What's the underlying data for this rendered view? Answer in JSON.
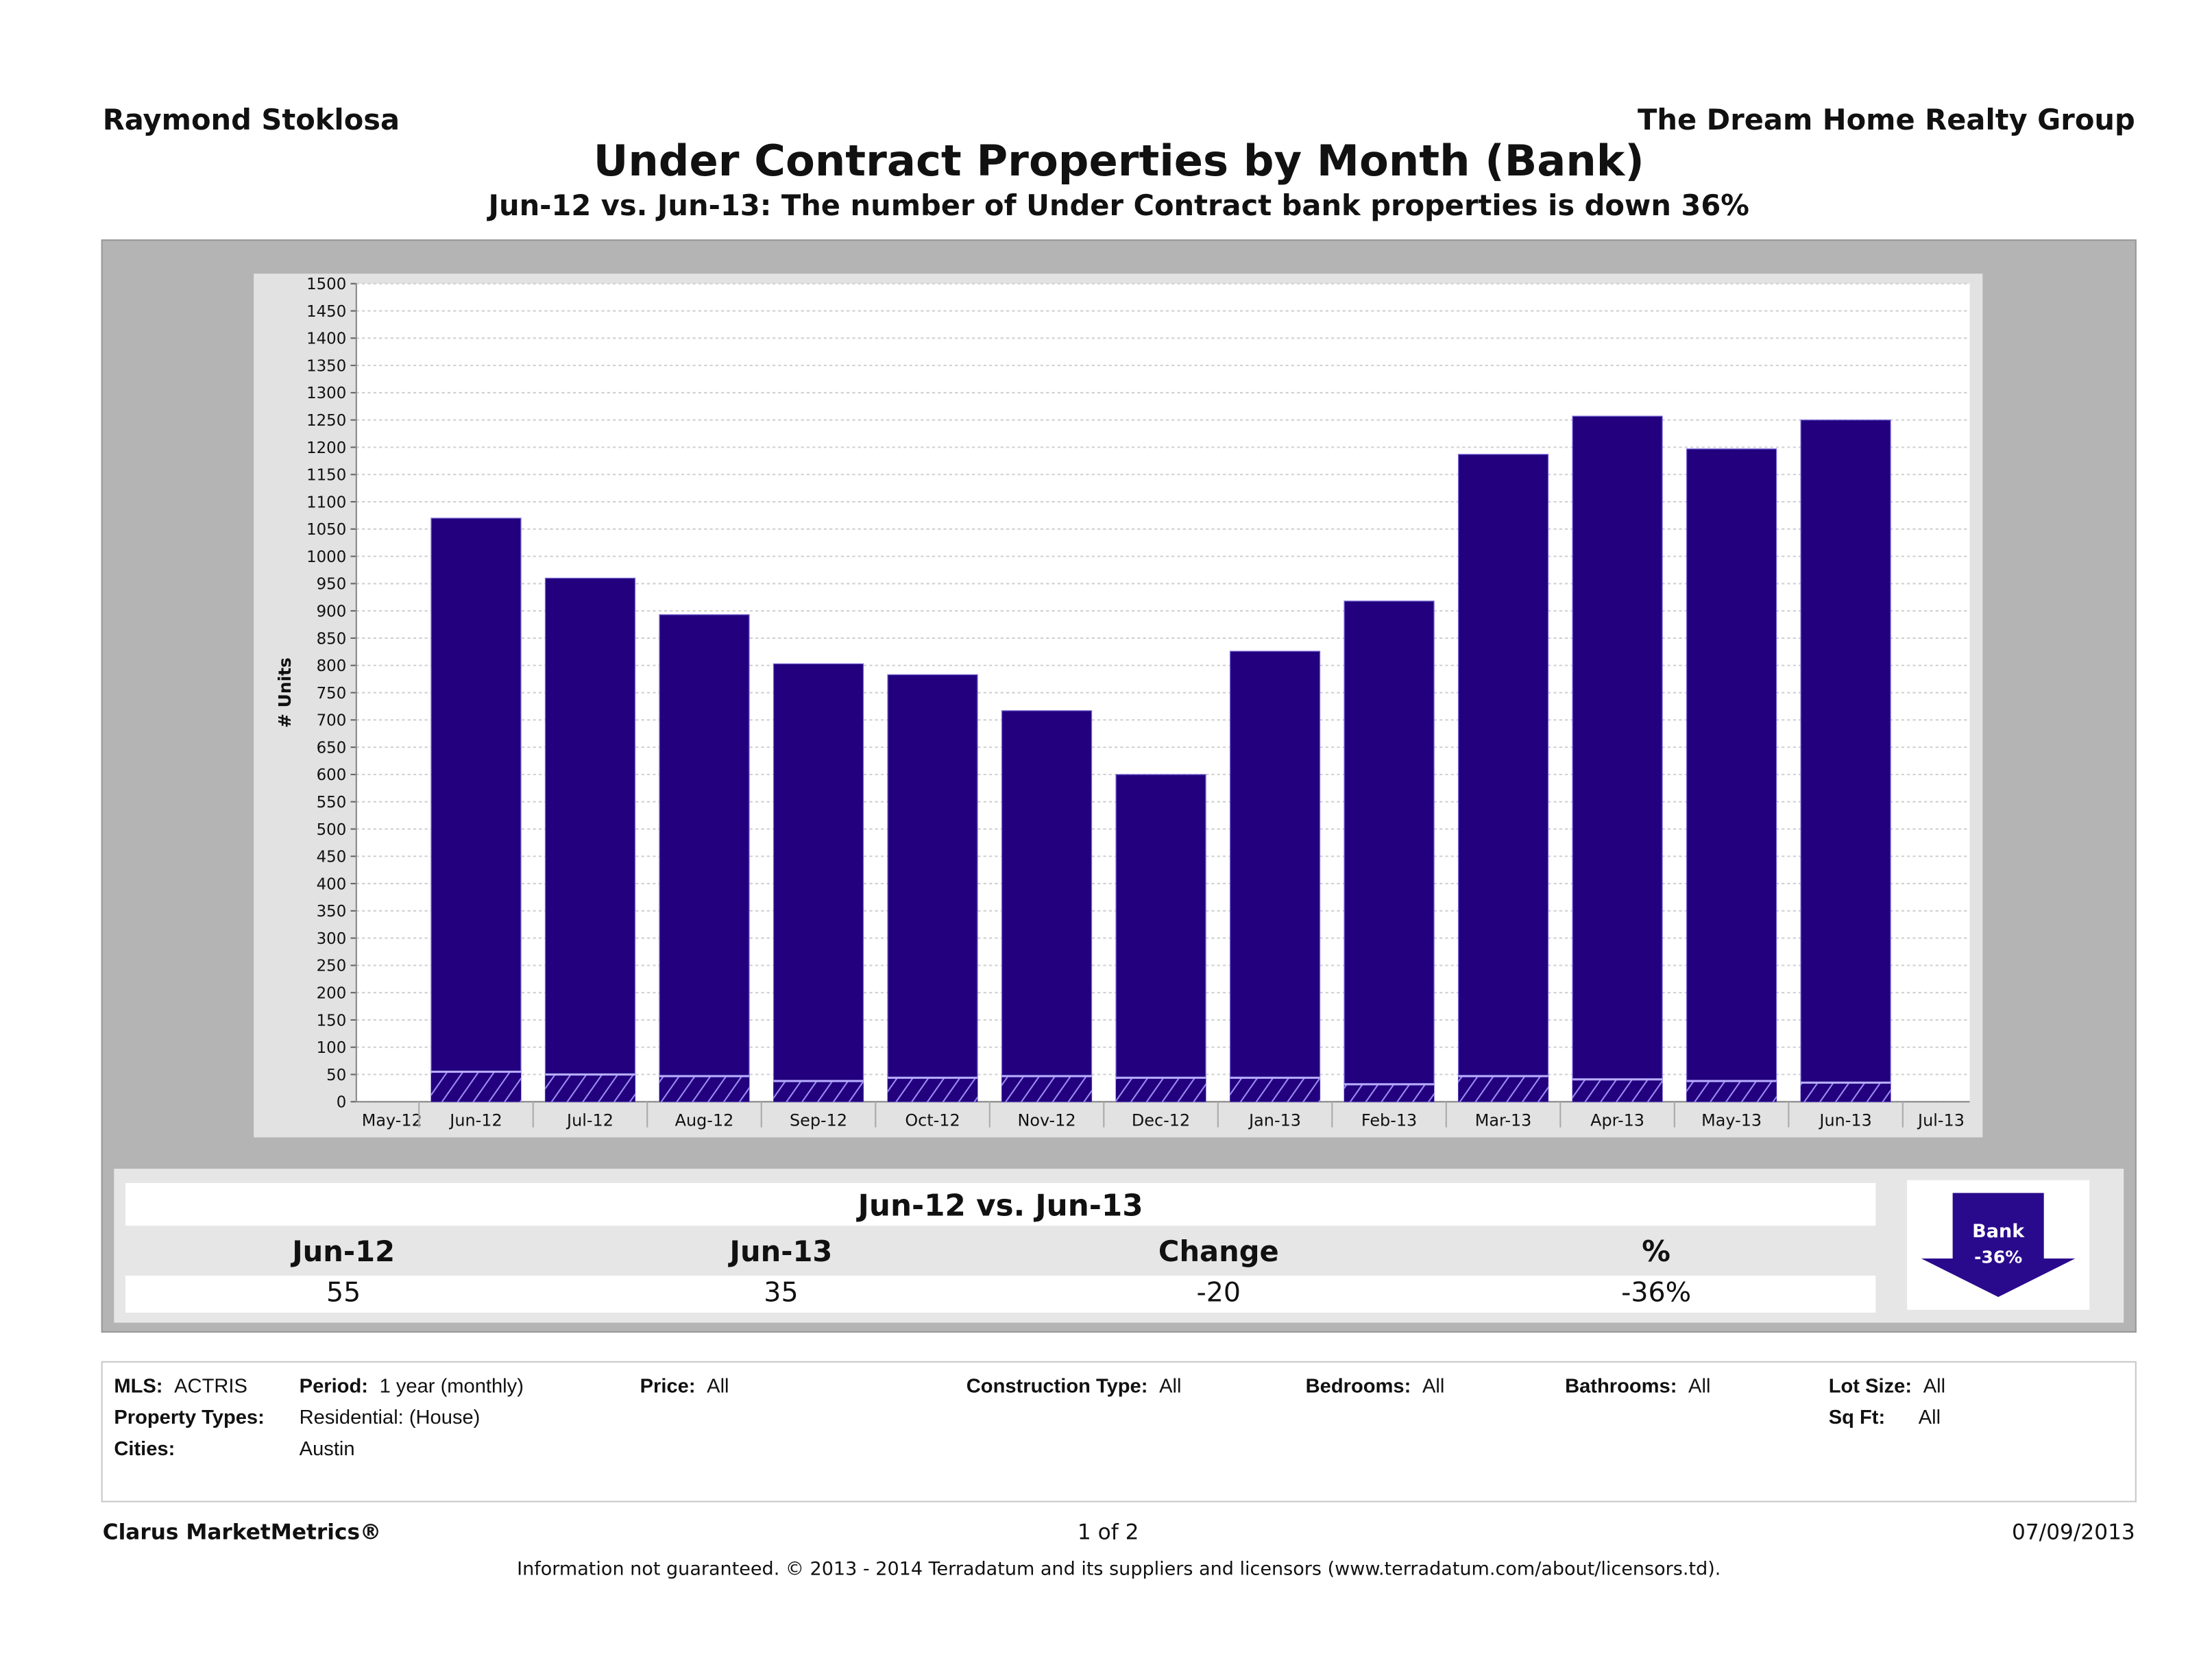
{
  "header": {
    "agent": "Raymond Stoklosa",
    "company": "The Dream Home Realty Group"
  },
  "title": "Under Contract Properties by Month (Bank)",
  "subtitle": "Jun-12 vs. Jun-13: The number of Under Contract bank properties is down 36%",
  "chart_data": {
    "type": "bar",
    "ylabel": "# Units",
    "ylim": [
      0,
      1500
    ],
    "ytick_step": 50,
    "grid": true,
    "axis_labels": [
      "May-12",
      "Jun-12",
      "Jul-12",
      "Aug-12",
      "Sep-12",
      "Oct-12",
      "Nov-12",
      "Dec-12",
      "Jan-13",
      "Feb-13",
      "Mar-13",
      "Apr-13",
      "May-13",
      "Jun-13",
      "Jul-13"
    ],
    "categories": [
      "Jun-12",
      "Jul-12",
      "Aug-12",
      "Sep-12",
      "Oct-12",
      "Nov-12",
      "Dec-12",
      "Jan-13",
      "Feb-13",
      "Mar-13",
      "Apr-13",
      "May-13",
      "Jun-13"
    ],
    "series": [
      {
        "values": [
          1070,
          960,
          893,
          803,
          783,
          717,
          600,
          826,
          918,
          1187,
          1257,
          1197,
          1250
        ],
        "color": "#22007e"
      },
      {
        "values": [
          55,
          50,
          47,
          38,
          44,
          47,
          44,
          44,
          32,
          47,
          41,
          38,
          35
        ],
        "color": "#22007e",
        "pattern": "hatched"
      }
    ]
  },
  "summary": {
    "heading": "Jun-12 vs. Jun-13",
    "columns": [
      "Jun-12",
      "Jun-13",
      "Change",
      "%"
    ],
    "values": [
      "55",
      "35",
      "-20",
      "-36%"
    ],
    "badge": {
      "label": "Bank",
      "value": "-36%",
      "icon": "down-arrow-icon",
      "color": "#2a0a8c"
    }
  },
  "criteria": {
    "mls_label": "MLS:",
    "mls": "ACTRIS",
    "period_label": "Period:",
    "period": "1 year (monthly)",
    "price_label": "Price:",
    "price": "All",
    "construction_label": "Construction Type:",
    "construction": "All",
    "bedrooms_label": "Bedrooms:",
    "bedrooms": "All",
    "bathrooms_label": "Bathrooms:",
    "bathrooms": "All",
    "lotsize_label": "Lot Size:",
    "lotsize": "All",
    "proptypes_label": "Property Types:",
    "proptypes": "Residential: (House)",
    "sqft_label": "Sq Ft:",
    "sqft": "All",
    "cities_label": "Cities:",
    "cities": "Austin"
  },
  "footer": {
    "brand": "Clarus MarketMetrics®",
    "page": "1 of 2",
    "date": "07/09/2013",
    "disclaimer": "Information not guaranteed.  © 2013 - 2014 Terradatum and its suppliers and licensors (www.terradatum.com/about/licensors.td)."
  }
}
